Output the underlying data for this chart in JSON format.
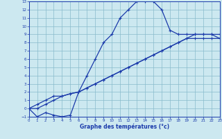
{
  "xlabel": "Graphe des températures (°c)",
  "bg_color": "#cce8f0",
  "grid_color": "#88bbcc",
  "line_color": "#1a3aaa",
  "xlim": [
    0,
    23
  ],
  "ylim": [
    -1,
    13
  ],
  "xticks": [
    0,
    1,
    2,
    3,
    4,
    5,
    6,
    7,
    8,
    9,
    10,
    11,
    12,
    13,
    14,
    15,
    16,
    17,
    18,
    19,
    20,
    21,
    22,
    23
  ],
  "yticks": [
    -1,
    0,
    1,
    2,
    3,
    4,
    5,
    6,
    7,
    8,
    9,
    10,
    11,
    12,
    13
  ],
  "line1_x": [
    0,
    1,
    2,
    3,
    4,
    5,
    6,
    7,
    8,
    9,
    10,
    11,
    12,
    13,
    14,
    15,
    16,
    17,
    18,
    19,
    20,
    21,
    22,
    23
  ],
  "line1_y": [
    0,
    -1,
    -0.5,
    -0.8,
    -1,
    -0.8,
    2,
    4,
    6,
    8,
    9,
    11,
    12,
    13,
    13,
    13,
    12,
    9.5,
    9,
    9,
    9,
    9,
    9,
    8.5
  ],
  "line2_x": [
    0,
    1,
    2,
    3,
    4,
    5,
    6,
    7,
    8,
    9,
    10,
    11,
    12,
    13,
    14,
    15,
    16,
    17,
    18,
    19,
    20,
    21,
    22,
    23
  ],
  "line2_y": [
    0,
    0.5,
    1.0,
    1.5,
    1.5,
    1.8,
    2,
    2.5,
    3,
    3.5,
    4,
    4.5,
    5,
    5.5,
    6,
    6.5,
    7,
    7.5,
    8,
    8.5,
    9,
    9,
    9,
    9
  ],
  "line3_x": [
    0,
    1,
    2,
    3,
    4,
    5,
    6,
    7,
    8,
    9,
    10,
    11,
    12,
    13,
    14,
    15,
    16,
    17,
    18,
    19,
    20,
    21,
    22,
    23
  ],
  "line3_y": [
    0,
    0,
    0.5,
    1.0,
    1.5,
    1.8,
    2,
    2.5,
    3,
    3.5,
    4,
    4.5,
    5,
    5.5,
    6,
    6.5,
    7,
    7.5,
    8,
    8.5,
    8.5,
    8.5,
    8.5,
    8.5
  ]
}
